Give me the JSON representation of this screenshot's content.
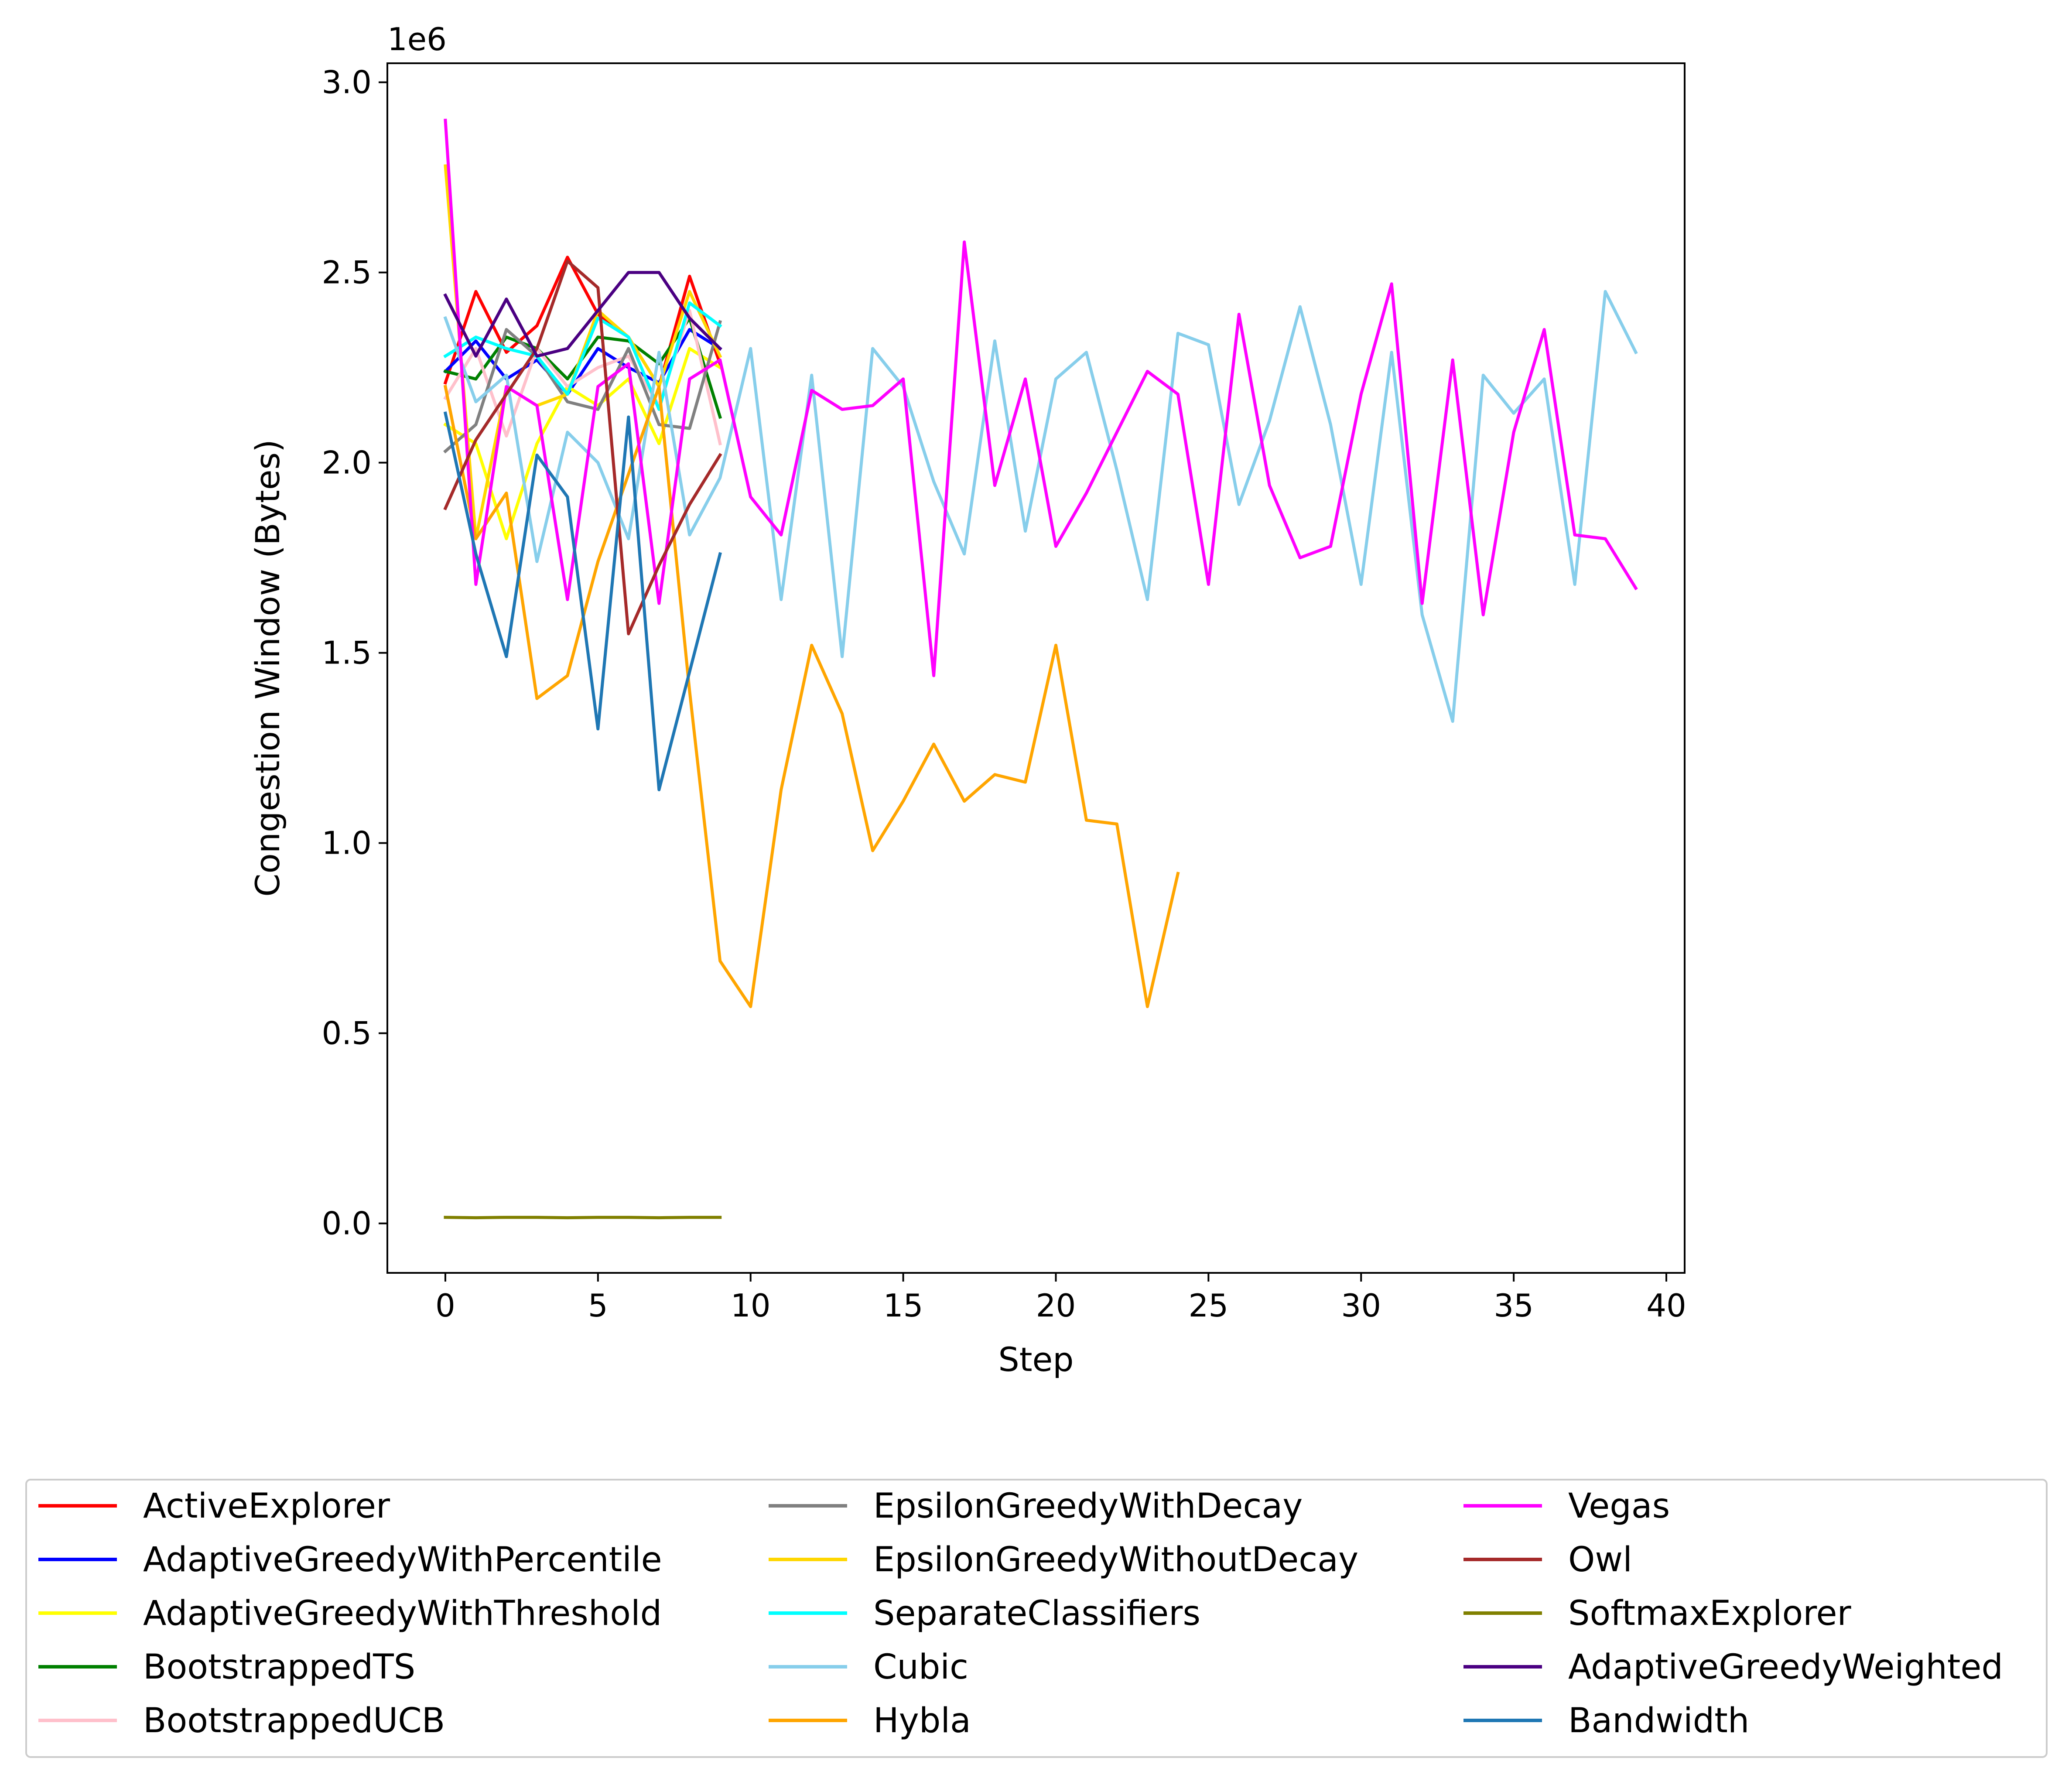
{
  "chart_data": {
    "type": "line",
    "title": "",
    "xlabel": "Step",
    "ylabel": "Congestion Window (Bytes)",
    "y_offset_label": "1e6",
    "y_scale_factor": 1000000,
    "xlim": [
      -1.9,
      40.6
    ],
    "ylim": [
      -0.13,
      3.05
    ],
    "x_ticks": [
      0,
      5,
      10,
      15,
      20,
      25,
      30,
      35,
      40
    ],
    "x_tick_labels": [
      "0",
      "5",
      "10",
      "15",
      "20",
      "25",
      "30",
      "35",
      "40"
    ],
    "y_ticks": [
      0.0,
      0.5,
      1.0,
      1.5,
      2.0,
      2.5,
      3.0
    ],
    "y_tick_labels": [
      "0.0",
      "0.5",
      "1.0",
      "1.5",
      "2.0",
      "2.5",
      "3.0"
    ],
    "grid": false,
    "legend_position": "below the plot, 3 columns",
    "series": [
      {
        "name": "ActiveExplorer",
        "color": "#ff0000",
        "x": [
          0,
          1,
          2,
          3,
          4,
          5,
          6,
          7,
          8,
          9
        ],
        "y": [
          2.21,
          2.45,
          2.29,
          2.36,
          2.54,
          2.39,
          2.33,
          2.2,
          2.49,
          2.26
        ]
      },
      {
        "name": "AdaptiveGreedyWithPercentile",
        "color": "#0000ff",
        "x": [
          0,
          1,
          2,
          3,
          4,
          5,
          6,
          7,
          8,
          9
        ],
        "y": [
          2.24,
          2.32,
          2.22,
          2.27,
          2.18,
          2.3,
          2.25,
          2.21,
          2.35,
          2.3
        ]
      },
      {
        "name": "AdaptiveGreedyWithThreshold",
        "color": "#ffff00",
        "x": [
          0,
          1,
          2,
          3,
          4,
          5,
          6,
          7,
          8,
          9
        ],
        "y": [
          2.1,
          2.05,
          1.8,
          2.05,
          2.2,
          2.15,
          2.22,
          2.05,
          2.3,
          2.25
        ]
      },
      {
        "name": "BootstrappedTS",
        "color": "#008000",
        "x": [
          0,
          1,
          2,
          3,
          4,
          5,
          6,
          7,
          8,
          9
        ],
        "y": [
          2.24,
          2.22,
          2.33,
          2.3,
          2.22,
          2.33,
          2.32,
          2.26,
          2.38,
          2.12
        ]
      },
      {
        "name": "BootstrappedUCB",
        "color": "#ffc0cb",
        "x": [
          0,
          1,
          2,
          3,
          4,
          5,
          6,
          7,
          8,
          9
        ],
        "y": [
          2.17,
          2.3,
          2.07,
          2.3,
          2.2,
          2.25,
          2.28,
          2.15,
          2.4,
          2.05
        ]
      },
      {
        "name": "EpsilonGreedyWithDecay",
        "color": "#808080",
        "x": [
          0,
          1,
          2,
          3,
          4,
          5,
          6,
          7,
          8,
          9
        ],
        "y": [
          2.03,
          2.1,
          2.35,
          2.28,
          2.16,
          2.14,
          2.3,
          2.1,
          2.09,
          2.37
        ]
      },
      {
        "name": "EpsilonGreedyWithoutDecay",
        "color": "#ffd700",
        "x": [
          0,
          1,
          2,
          3,
          4,
          5,
          6,
          7,
          8,
          9
        ],
        "y": [
          2.78,
          1.8,
          2.2,
          2.15,
          2.18,
          2.4,
          2.33,
          2.2,
          2.45,
          2.28
        ]
      },
      {
        "name": "SeparateClassifiers",
        "color": "#00ffff",
        "x": [
          0,
          1,
          2,
          3,
          4,
          5,
          6,
          7,
          8,
          9
        ],
        "y": [
          2.28,
          2.33,
          2.3,
          2.28,
          2.18,
          2.38,
          2.33,
          2.14,
          2.42,
          2.36
        ]
      },
      {
        "name": "Cubic",
        "color": "#87ceeb",
        "x": [
          0,
          1,
          2,
          3,
          4,
          5,
          6,
          7,
          8,
          9,
          10,
          11,
          12,
          13,
          14,
          15,
          16,
          17,
          18,
          19,
          20,
          21,
          22,
          23,
          24,
          25,
          26,
          27,
          28,
          29,
          30,
          31,
          32,
          33,
          34,
          35,
          36,
          37,
          38,
          39
        ],
        "y": [
          2.38,
          2.16,
          2.23,
          1.74,
          2.08,
          2.0,
          1.8,
          2.29,
          1.81,
          1.96,
          2.3,
          1.64,
          2.23,
          1.49,
          2.3,
          2.2,
          1.95,
          1.76,
          2.32,
          1.82,
          2.22,
          2.29,
          1.98,
          1.64,
          2.34,
          2.31,
          1.89,
          2.11,
          2.41,
          2.1,
          1.68,
          2.29,
          1.6,
          1.32,
          2.23,
          2.13,
          2.22,
          1.68,
          2.45,
          2.29
        ]
      },
      {
        "name": "Hybla",
        "color": "#ffa500",
        "x": [
          0,
          1,
          2,
          3,
          4,
          5,
          6,
          7,
          8,
          9,
          10,
          11,
          12,
          13,
          14,
          15,
          16,
          17,
          18,
          19,
          20,
          21,
          22,
          23,
          24
        ],
        "y": [
          2.2,
          1.8,
          1.92,
          1.38,
          1.44,
          1.74,
          1.97,
          2.2,
          1.4,
          0.69,
          0.57,
          1.14,
          1.52,
          1.34,
          0.98,
          1.11,
          1.26,
          1.11,
          1.18,
          1.16,
          1.52,
          1.06,
          1.05,
          0.57,
          0.92
        ]
      },
      {
        "name": "Vegas",
        "color": "#ff00ff",
        "x": [
          0,
          1,
          2,
          3,
          4,
          5,
          6,
          7,
          8,
          9,
          10,
          11,
          12,
          13,
          14,
          15,
          16,
          17,
          18,
          19,
          20,
          21,
          22,
          23,
          24,
          25,
          26,
          27,
          28,
          29,
          30,
          31,
          32,
          33,
          34,
          35,
          36,
          37,
          38,
          39
        ],
        "y": [
          2.9,
          1.68,
          2.2,
          2.15,
          1.64,
          2.2,
          2.26,
          1.63,
          2.22,
          2.27,
          1.91,
          1.81,
          2.19,
          2.14,
          2.15,
          2.22,
          1.44,
          2.58,
          1.94,
          2.22,
          1.78,
          1.92,
          2.08,
          2.24,
          2.18,
          1.68,
          2.39,
          1.94,
          1.75,
          1.78,
          2.18,
          2.47,
          1.63,
          2.27,
          1.6,
          2.08,
          2.35,
          1.81,
          1.8,
          1.67
        ]
      },
      {
        "name": "Owl",
        "color": "#a52a2a",
        "x": [
          0,
          1,
          2,
          3,
          4,
          5,
          6,
          7,
          8,
          9
        ],
        "y": [
          1.88,
          2.06,
          2.18,
          2.3,
          2.53,
          2.46,
          1.55,
          1.73,
          1.89,
          2.02
        ]
      },
      {
        "name": "SoftmaxExplorer",
        "color": "#808000",
        "x": [
          0,
          1,
          2,
          3,
          4,
          5,
          6,
          7,
          8,
          9
        ],
        "y": [
          0.016,
          0.015,
          0.016,
          0.016,
          0.015,
          0.016,
          0.016,
          0.015,
          0.016,
          0.016
        ]
      },
      {
        "name": "AdaptiveGreedyWeighted",
        "color": "#4b0082",
        "x": [
          0,
          1,
          2,
          3,
          4,
          5,
          6,
          7,
          8,
          9
        ],
        "y": [
          2.44,
          2.28,
          2.43,
          2.28,
          2.3,
          2.4,
          2.5,
          2.5,
          2.38,
          2.3
        ]
      },
      {
        "name": "Bandwidth",
        "color": "#1f77b4",
        "x": [
          0,
          1,
          2,
          3,
          4,
          5,
          6,
          7,
          8,
          9
        ],
        "y": [
          2.13,
          1.76,
          1.49,
          2.02,
          1.91,
          1.3,
          2.12,
          1.14,
          1.45,
          1.76
        ]
      }
    ]
  }
}
